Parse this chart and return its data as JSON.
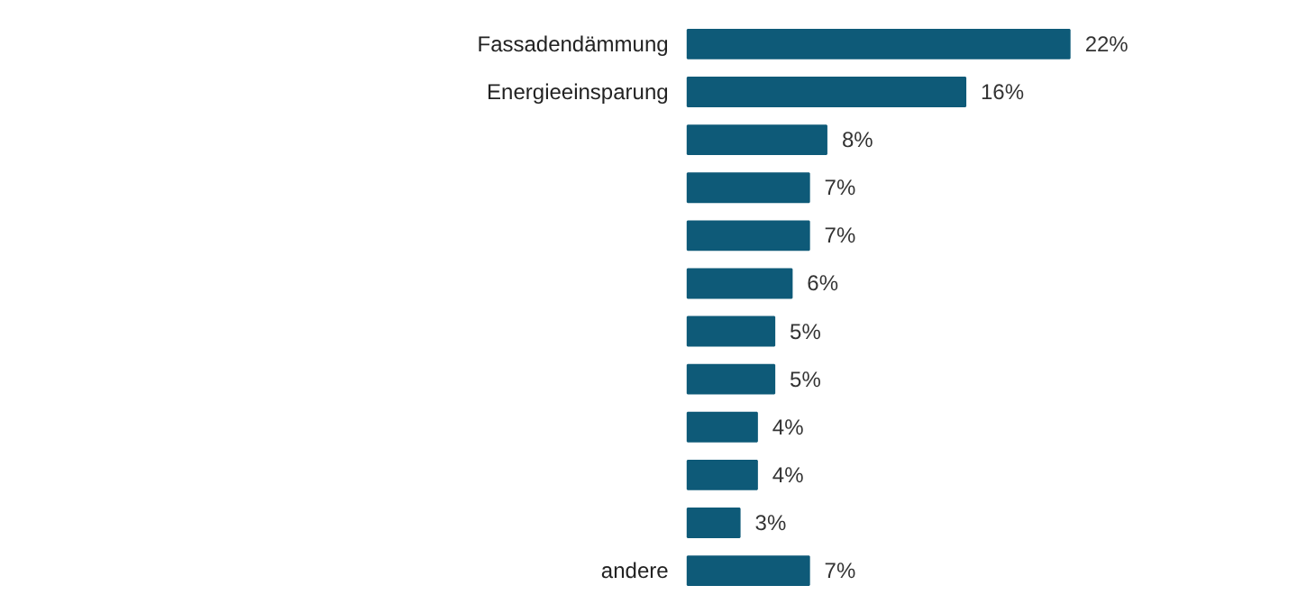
{
  "chart_data": {
    "type": "bar",
    "orientation": "horizontal",
    "categories": [
      "Fassadendämmung",
      "Energieeinsparung",
      null,
      null,
      null,
      null,
      null,
      null,
      null,
      null,
      null,
      "andere"
    ],
    "values": [
      22,
      16,
      8,
      7,
      7,
      6,
      5,
      5,
      4,
      4,
      3,
      7
    ],
    "value_labels": [
      "22%",
      "16%",
      "8%",
      "7%",
      "7%",
      "6%",
      "5%",
      "5%",
      "4%",
      "4%",
      "3%",
      "7%"
    ],
    "color": "#0e5a78",
    "grid": false
  }
}
